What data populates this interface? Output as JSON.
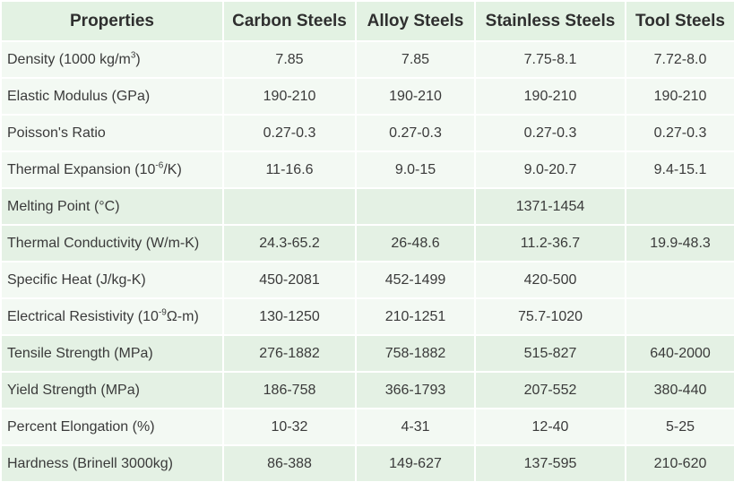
{
  "table": {
    "headers": [
      "Properties",
      "Carbon Steels",
      "Alloy Steels",
      "Stainless Steels",
      "Tool Steels"
    ],
    "rows": [
      {
        "label": [
          "Density (1000 kg/m",
          "3",
          ")"
        ],
        "values": [
          "7.85",
          "7.85",
          "7.75-8.1",
          "7.72-8.0"
        ]
      },
      {
        "label": [
          "Elastic Modulus (GPa)",
          "",
          ""
        ],
        "values": [
          "190-210",
          "190-210",
          "190-210",
          "190-210"
        ]
      },
      {
        "label": [
          "Poisson's Ratio",
          "",
          ""
        ],
        "values": [
          "0.27-0.3",
          "0.27-0.3",
          "0.27-0.3",
          "0.27-0.3"
        ]
      },
      {
        "label": [
          "Thermal Expansion (10",
          "-6",
          "/K)"
        ],
        "values": [
          "11-16.6",
          "9.0-15",
          "9.0-20.7",
          "9.4-15.1"
        ]
      },
      {
        "label": [
          "Melting Point (°C)",
          "",
          ""
        ],
        "values": [
          "",
          "",
          "1371-1454",
          ""
        ]
      },
      {
        "label": [
          "Thermal Conductivity (W/m-K)",
          "",
          ""
        ],
        "values": [
          "24.3-65.2",
          "26-48.6",
          "11.2-36.7",
          "19.9-48.3"
        ]
      },
      {
        "label": [
          "Specific Heat (J/kg-K)",
          "",
          ""
        ],
        "values": [
          "450-2081",
          "452-1499",
          "420-500",
          ""
        ]
      },
      {
        "label": [
          "Electrical Resistivity (10",
          "-9",
          "Ω-m)"
        ],
        "values": [
          "130-1250",
          "210-1251",
          "75.7-1020",
          ""
        ]
      },
      {
        "label": [
          "Tensile Strength (MPa)",
          "",
          ""
        ],
        "values": [
          "276-1882",
          "758-1882",
          "515-827",
          "640-2000"
        ]
      },
      {
        "label": [
          "Yield Strength (MPa)",
          "",
          ""
        ],
        "values": [
          "186-758",
          "366-1793",
          "207-552",
          "380-440"
        ]
      },
      {
        "label": [
          "Percent Elongation (%)",
          "",
          ""
        ],
        "values": [
          "10-32",
          "4-31",
          "12-40",
          "5-25"
        ]
      },
      {
        "label": [
          "Hardness (Brinell 3000kg)",
          "",
          ""
        ],
        "values": [
          "86-388",
          "149-627",
          "137-595",
          "210-620"
        ]
      }
    ]
  },
  "colors": {
    "header_background": "#e3f2e3",
    "row_light": "#f3f9f3",
    "row_dark": "#e4f1e4",
    "text": "#3a3a3a"
  }
}
